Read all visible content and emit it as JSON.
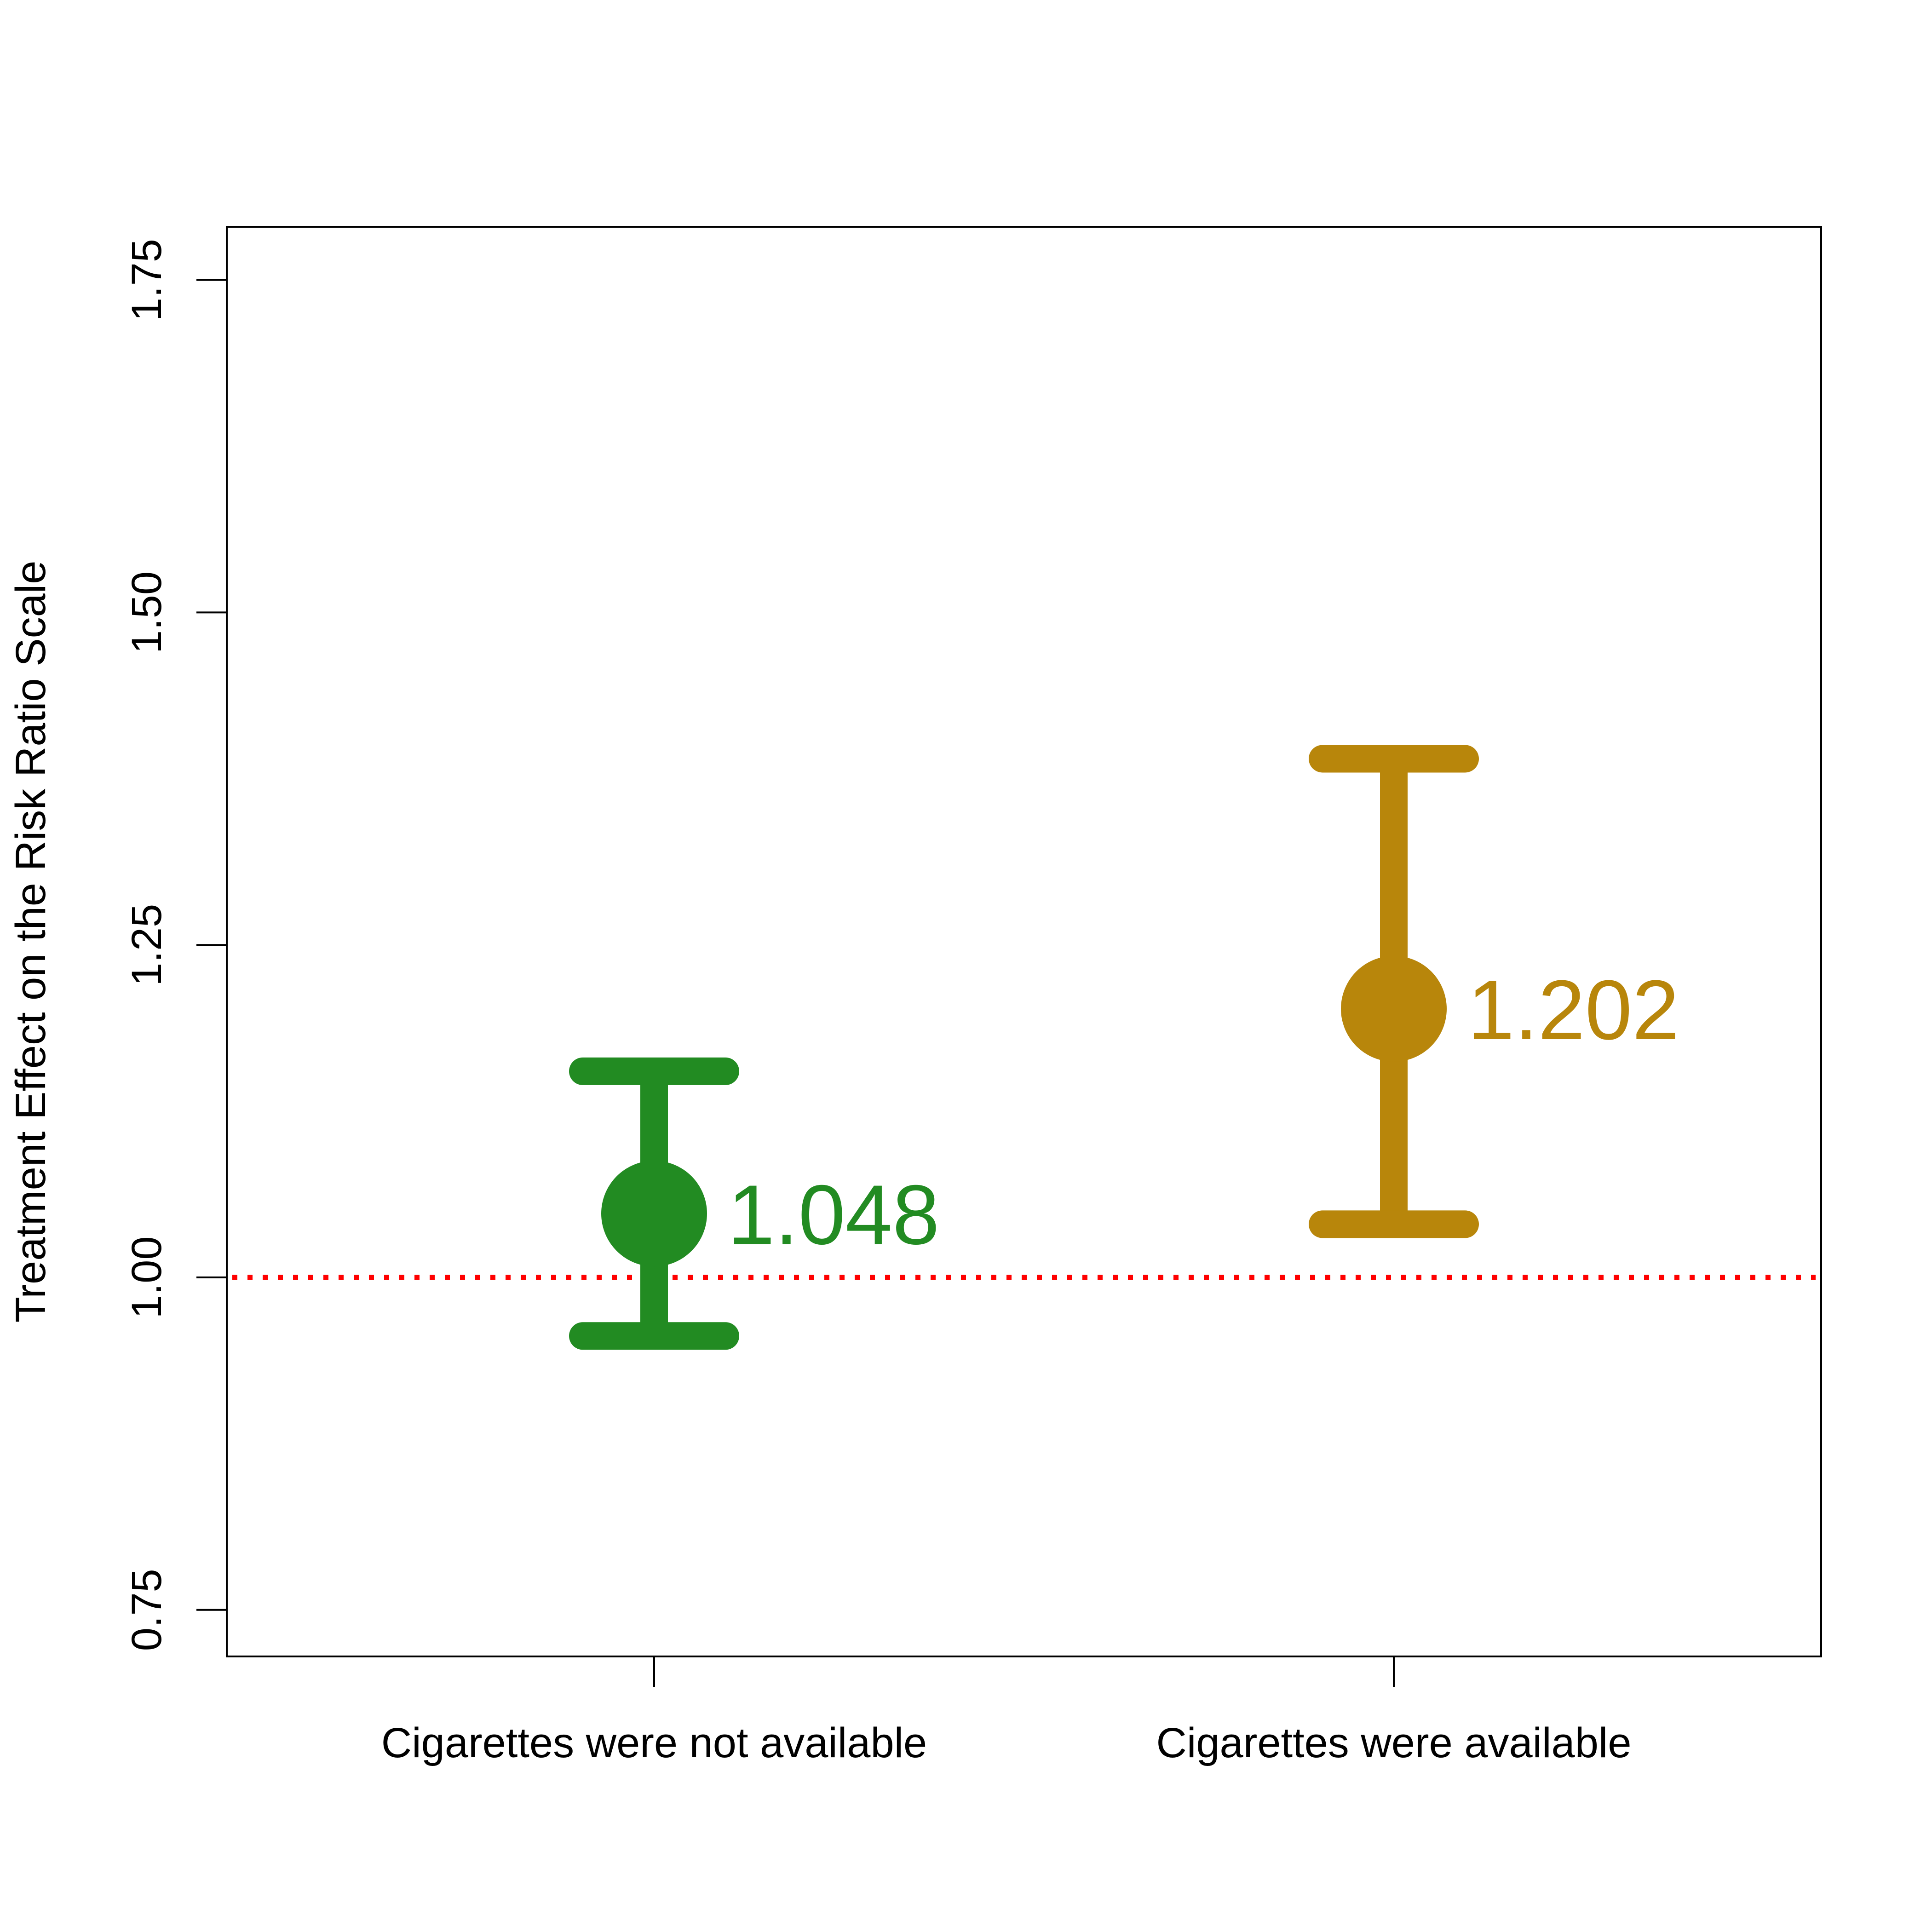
{
  "chart_data": {
    "type": "scatter",
    "title": "",
    "xlabel": "",
    "ylabel": "Treatment Effect on the Risk Ratio Scale",
    "ylim": [
      0.715,
      1.79
    ],
    "yticks": [
      0.75,
      1.0,
      1.25,
      1.5,
      1.75
    ],
    "ytick_labels": [
      "0.75",
      "1.00",
      "1.25",
      "1.50",
      "1.75"
    ],
    "categories": [
      "Cigarettes were not available",
      "Cigarettes were available"
    ],
    "points": [
      {
        "category": "Cigarettes were not available",
        "estimate": 1.048,
        "lower": 0.956,
        "upper": 1.155,
        "label": "1.048",
        "color": "#228b22"
      },
      {
        "category": "Cigarettes were available",
        "estimate": 1.202,
        "lower": 1.04,
        "upper": 1.39,
        "label": "1.202",
        "color": "#b8860b"
      }
    ],
    "reference_line": {
      "y": 1.0,
      "style": "dotted",
      "color": "#ff0000"
    },
    "grid": false,
    "legend": "none"
  }
}
